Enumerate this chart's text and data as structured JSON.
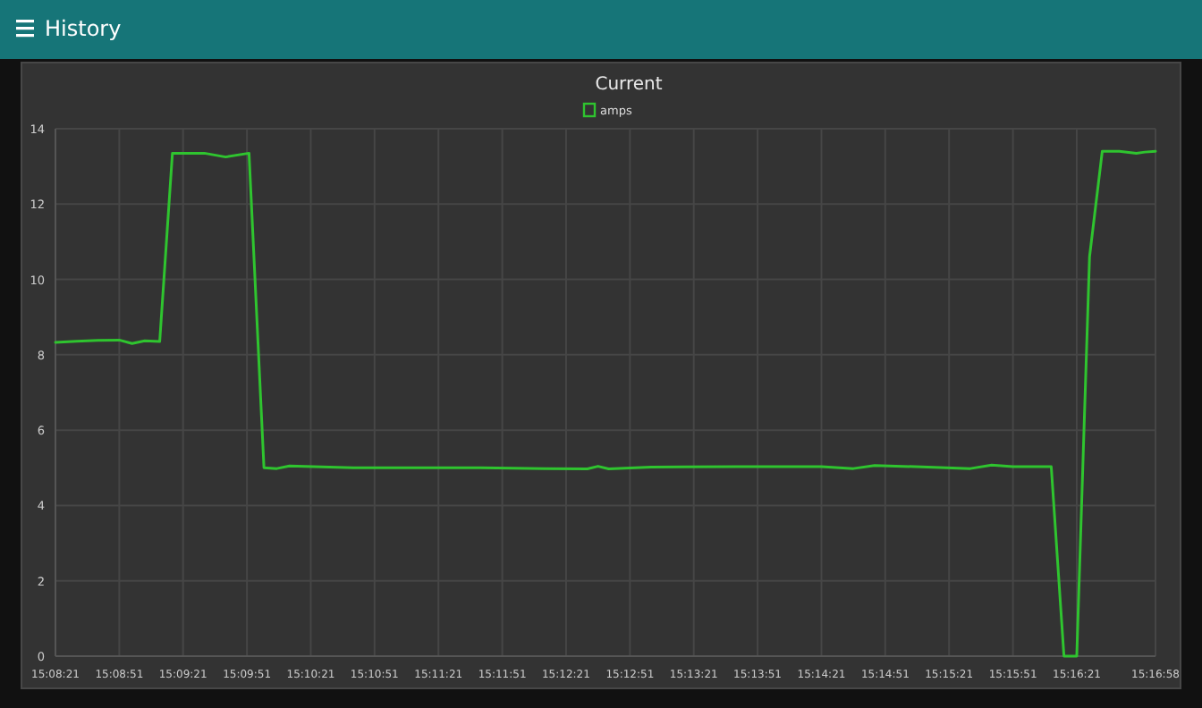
{
  "chart_data": {
    "type": "line",
    "title": "Current",
    "annotations": [
      "History"
    ],
    "x": [
      15.13917,
      15.14194,
      15.14472,
      15.1475,
      15.14917,
      15.15083,
      15.15278,
      15.15444,
      15.15861,
      15.16139,
      15.16444,
      15.16639,
      15.16806,
      15.16972,
      15.17806,
      15.18639,
      15.19472,
      15.20306,
      15.20861,
      15.21,
      15.21139,
      15.21694,
      15.22806,
      15.23917,
      15.24333,
      15.24611,
      15.25306,
      15.25861,
      15.26139,
      15.26417,
      15.26917,
      15.27083,
      15.2725,
      15.27417,
      15.27583,
      15.27806,
      15.28028,
      15.28139,
      15.28278
    ],
    "series": [
      {
        "name": "amps",
        "color": "#2fc42f",
        "values": [
          8.33,
          8.36,
          8.38,
          8.39,
          8.3,
          8.37,
          8.35,
          13.35,
          13.35,
          13.25,
          13.35,
          5.0,
          4.98,
          5.05,
          5.0,
          5.0,
          5.0,
          4.98,
          4.97,
          5.04,
          4.97,
          5.02,
          5.03,
          5.03,
          4.98,
          5.06,
          5.02,
          4.98,
          5.07,
          5.03,
          5.03,
          0,
          0,
          10.6,
          13.4,
          13.4,
          13.35,
          13.38,
          13.4
        ]
      }
    ],
    "xlim": [
      15.13917,
      15.28278
    ],
    "xticks": [
      {
        "value": 15.13917,
        "label": "15:08:21"
      },
      {
        "value": 15.1475,
        "label": "15:08:51"
      },
      {
        "value": 15.15583,
        "label": "15:09:21"
      },
      {
        "value": 15.16417,
        "label": "15:09:51"
      },
      {
        "value": 15.1725,
        "label": "15:10:21"
      },
      {
        "value": 15.18083,
        "label": "15:10:51"
      },
      {
        "value": 15.18917,
        "label": "15:11:21"
      },
      {
        "value": 15.1975,
        "label": "15:11:51"
      },
      {
        "value": 15.20583,
        "label": "15:12:21"
      },
      {
        "value": 15.21417,
        "label": "15:12:51"
      },
      {
        "value": 15.2225,
        "label": "15:13:21"
      },
      {
        "value": 15.23083,
        "label": "15:13:51"
      },
      {
        "value": 15.23917,
        "label": "15:14:21"
      },
      {
        "value": 15.2475,
        "label": "15:14:51"
      },
      {
        "value": 15.25583,
        "label": "15:15:21"
      },
      {
        "value": 15.26417,
        "label": "15:15:51"
      },
      {
        "value": 15.2725,
        "label": "15:16:21"
      },
      {
        "value": 15.28278,
        "label": "15:16:58"
      }
    ],
    "ylim": [
      0,
      14
    ],
    "yticks": [
      0,
      2,
      4,
      6,
      8,
      10,
      12,
      14
    ],
    "grid": true,
    "legend": "top",
    "marker": "none",
    "line_style": "solid"
  }
}
